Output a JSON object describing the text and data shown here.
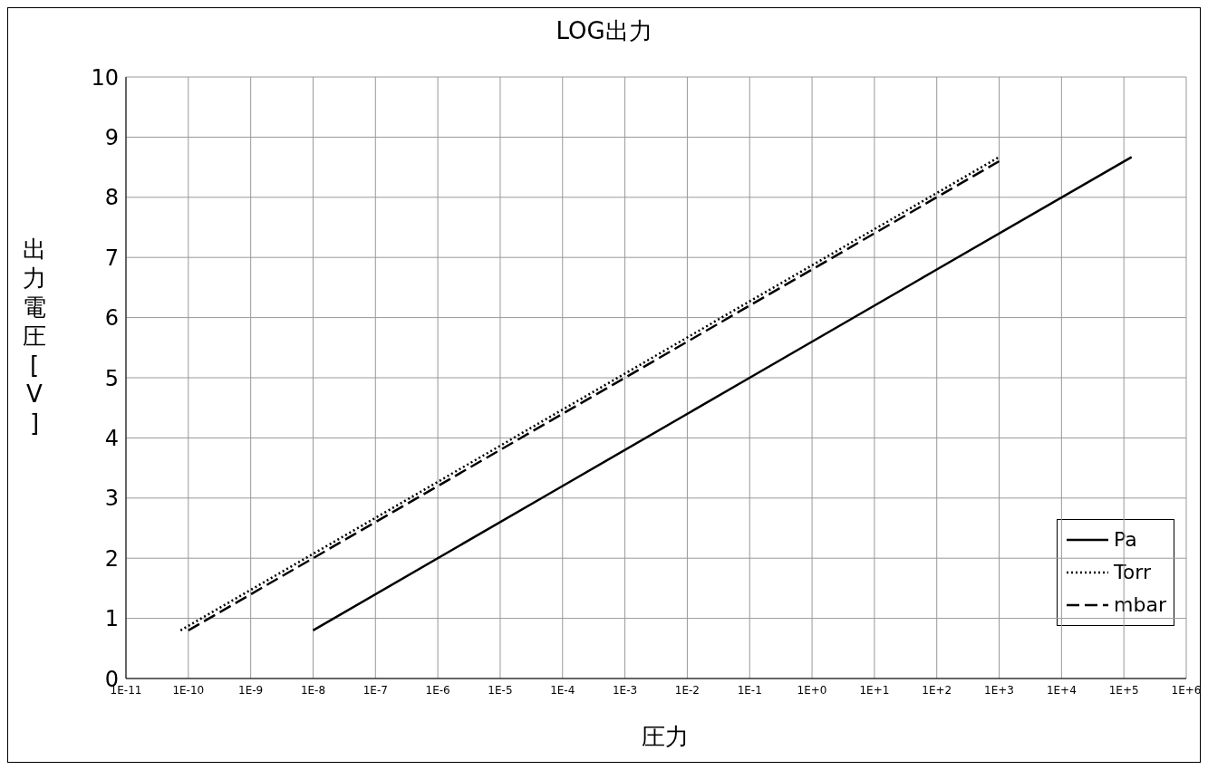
{
  "chart_data": {
    "type": "line",
    "title": "LOG出力",
    "xlabel": "圧力",
    "ylabel": "出力電圧[V]",
    "log": "x",
    "grid": true,
    "legend": "bottom right",
    "marker": "none",
    "xlim": [
      1e-11,
      1000000.0
    ],
    "xticks": [
      {
        "value": 1e-11,
        "label": "1E-11"
      },
      {
        "value": 1e-10,
        "label": "1E-10"
      },
      {
        "value": 1e-09,
        "label": "1E-9"
      },
      {
        "value": 1e-08,
        "label": "1E-8"
      },
      {
        "value": 1e-07,
        "label": "1E-7"
      },
      {
        "value": 1e-06,
        "label": "1E-6"
      },
      {
        "value": 1e-05,
        "label": "1E-5"
      },
      {
        "value": 0.0001,
        "label": "1E-4"
      },
      {
        "value": 0.001,
        "label": "1E-3"
      },
      {
        "value": 0.01,
        "label": "1E-2"
      },
      {
        "value": 0.1,
        "label": "1E-1"
      },
      {
        "value": 1,
        "label": "1E+0"
      },
      {
        "value": 10,
        "label": "1E+1"
      },
      {
        "value": 100,
        "label": "1E+2"
      },
      {
        "value": 1000,
        "label": "1E+3"
      },
      {
        "value": 10000,
        "label": "1E+4"
      },
      {
        "value": 100000,
        "label": "1E+5"
      },
      {
        "value": 1000000,
        "label": "1E+6"
      }
    ],
    "ylim": [
      0,
      10
    ],
    "yticks": [
      0,
      1,
      2,
      3,
      4,
      5,
      6,
      7,
      8,
      9,
      10
    ],
    "series": [
      {
        "name": "Pa",
        "color": "#000000",
        "line_style": "solid",
        "x": [
          1e-08,
          0.0001,
          0.1,
          100,
          133000
        ],
        "values": [
          0.8,
          3.2,
          5.0,
          6.8,
          8.67
        ]
      },
      {
        "name": "Torr",
        "color": "#000000",
        "line_style": "dotted",
        "x": [
          7.5e-11,
          1e-06,
          0.001,
          1000
        ],
        "values": [
          0.8,
          3.27,
          5.07,
          8.67
        ]
      },
      {
        "name": "mbar",
        "color": "#000000",
        "line_style": "dashed",
        "x": [
          1e-10,
          1e-06,
          0.001,
          1000
        ],
        "values": [
          0.8,
          3.2,
          5.0,
          8.6
        ]
      }
    ]
  }
}
